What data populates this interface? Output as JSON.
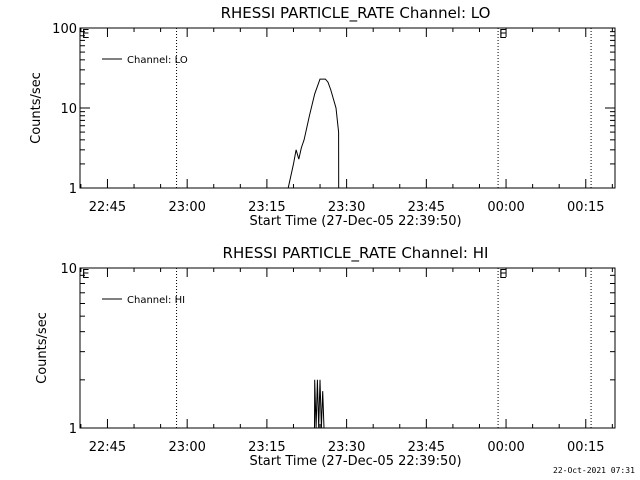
{
  "timestamp": "22-Oct-2021 07:31",
  "chart_data": [
    {
      "type": "line",
      "title": "RHESSI PARTICLE_RATE Channel: LO",
      "xlabel": "Start Time (27-Dec-05 22:39:50)",
      "ylabel": "Counts/sec",
      "yscale": "log",
      "xlim": [
        "22:39:50",
        "00:20:30"
      ],
      "ylim": [
        1,
        100
      ],
      "x_ticks": [
        "22:45",
        "23:00",
        "23:15",
        "23:30",
        "23:45",
        "00:00",
        "00:15"
      ],
      "y_ticks": [
        "1",
        "10",
        "100"
      ],
      "legend": "Channel: LO",
      "legend_position": "top-left",
      "markers": [
        {
          "label": "E",
          "time": "22:40:00"
        },
        {
          "label": "E",
          "time": "23:58:30"
        }
      ],
      "vertical_dotted_lines": [
        "22:58:00",
        "23:58:30",
        "00:16:00"
      ],
      "series": [
        {
          "name": "Channel: LO",
          "x": [
            "23:19:00",
            "23:20:00",
            "23:20:30",
            "23:21:00",
            "23:21:30",
            "23:22:00",
            "23:23:00",
            "23:24:00",
            "23:25:00",
            "23:26:00",
            "23:26:30",
            "23:27:00",
            "23:28:00",
            "23:28:30",
            "23:28:31"
          ],
          "y": [
            1.0,
            2.0,
            3.0,
            2.3,
            3.2,
            4.0,
            8.0,
            15.0,
            23.0,
            23.0,
            21.0,
            17.0,
            10.0,
            5.0,
            1.0
          ]
        }
      ]
    },
    {
      "type": "line",
      "title": "RHESSI PARTICLE_RATE Channel: HI",
      "xlabel": "Start Time (27-Dec-05 22:39:50)",
      "ylabel": "Counts/sec",
      "yscale": "log",
      "xlim": [
        "22:39:50",
        "00:20:30"
      ],
      "ylim": [
        1,
        10
      ],
      "x_ticks": [
        "22:45",
        "23:00",
        "23:15",
        "23:30",
        "23:45",
        "00:00",
        "00:15"
      ],
      "y_ticks": [
        "1",
        "10"
      ],
      "legend": "Channel: HI",
      "legend_position": "top-left",
      "markers": [
        {
          "label": "E",
          "time": "22:40:00"
        },
        {
          "label": "E",
          "time": "23:58:30"
        }
      ],
      "vertical_dotted_lines": [
        "22:58:00",
        "23:58:30",
        "00:16:00"
      ],
      "series": [
        {
          "name": "Channel: HI",
          "x": [
            "23:23:58",
            "23:24:00",
            "23:24:15",
            "23:24:30",
            "23:24:45",
            "23:25:00",
            "23:25:15",
            "23:25:30",
            "23:25:45",
            "23:26:00"
          ],
          "y": [
            1.0,
            2.0,
            1.0,
            2.0,
            1.0,
            2.0,
            1.0,
            1.7,
            1.0,
            1.0
          ]
        }
      ]
    }
  ]
}
